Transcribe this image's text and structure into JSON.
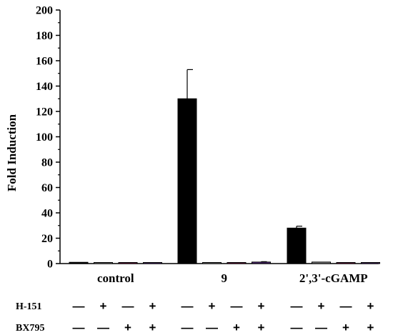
{
  "chart_data": {
    "type": "bar",
    "title": "",
    "xlabel": "",
    "ylabel": "Fold Induction",
    "ylim": [
      0,
      200
    ],
    "yticks": [
      0,
      20,
      40,
      60,
      80,
      100,
      120,
      140,
      160,
      180,
      200
    ],
    "grid": false,
    "groups": [
      "control",
      "9",
      "2',3'-cGAMP"
    ],
    "bars": [
      {
        "group": "control",
        "h151": "—",
        "bx795": "—",
        "value": 1,
        "error": 0,
        "color": "#000000"
      },
      {
        "group": "control",
        "h151": "+",
        "bx795": "—",
        "value": 0.6,
        "error": 0,
        "color": "#8c8c8c"
      },
      {
        "group": "control",
        "h151": "—",
        "bx795": "+",
        "value": 0.8,
        "error": 0,
        "color": "#8b1a4a"
      },
      {
        "group": "control",
        "h151": "+",
        "bx795": "+",
        "value": 0.5,
        "error": 0,
        "color": "#5a2d82"
      },
      {
        "group": "9",
        "h151": "—",
        "bx795": "—",
        "value": 130,
        "error": 23,
        "color": "#000000"
      },
      {
        "group": "9",
        "h151": "+",
        "bx795": "—",
        "value": 0.6,
        "error": 0,
        "color": "#8c8c8c"
      },
      {
        "group": "9",
        "h151": "—",
        "bx795": "+",
        "value": 0.8,
        "error": 0,
        "color": "#8b1a4a"
      },
      {
        "group": "9",
        "h151": "+",
        "bx795": "+",
        "value": 1.2,
        "error": 0.3,
        "color": "#5a2d82"
      },
      {
        "group": "2',3'-cGAMP",
        "h151": "—",
        "bx795": "—",
        "value": 28,
        "error": 1.5,
        "color": "#000000"
      },
      {
        "group": "2',3'-cGAMP",
        "h151": "+",
        "bx795": "—",
        "value": 1.2,
        "error": 0,
        "color": "#8c8c8c"
      },
      {
        "group": "2',3'-cGAMP",
        "h151": "—",
        "bx795": "+",
        "value": 0.6,
        "error": 0,
        "color": "#8b1a4a"
      },
      {
        "group": "2',3'-cGAMP",
        "h151": "+",
        "bx795": "+",
        "value": 0.8,
        "error": 0,
        "color": "#5a2d82"
      }
    ],
    "row_labels": {
      "h151": "H-151",
      "bx795": "BX795"
    }
  }
}
